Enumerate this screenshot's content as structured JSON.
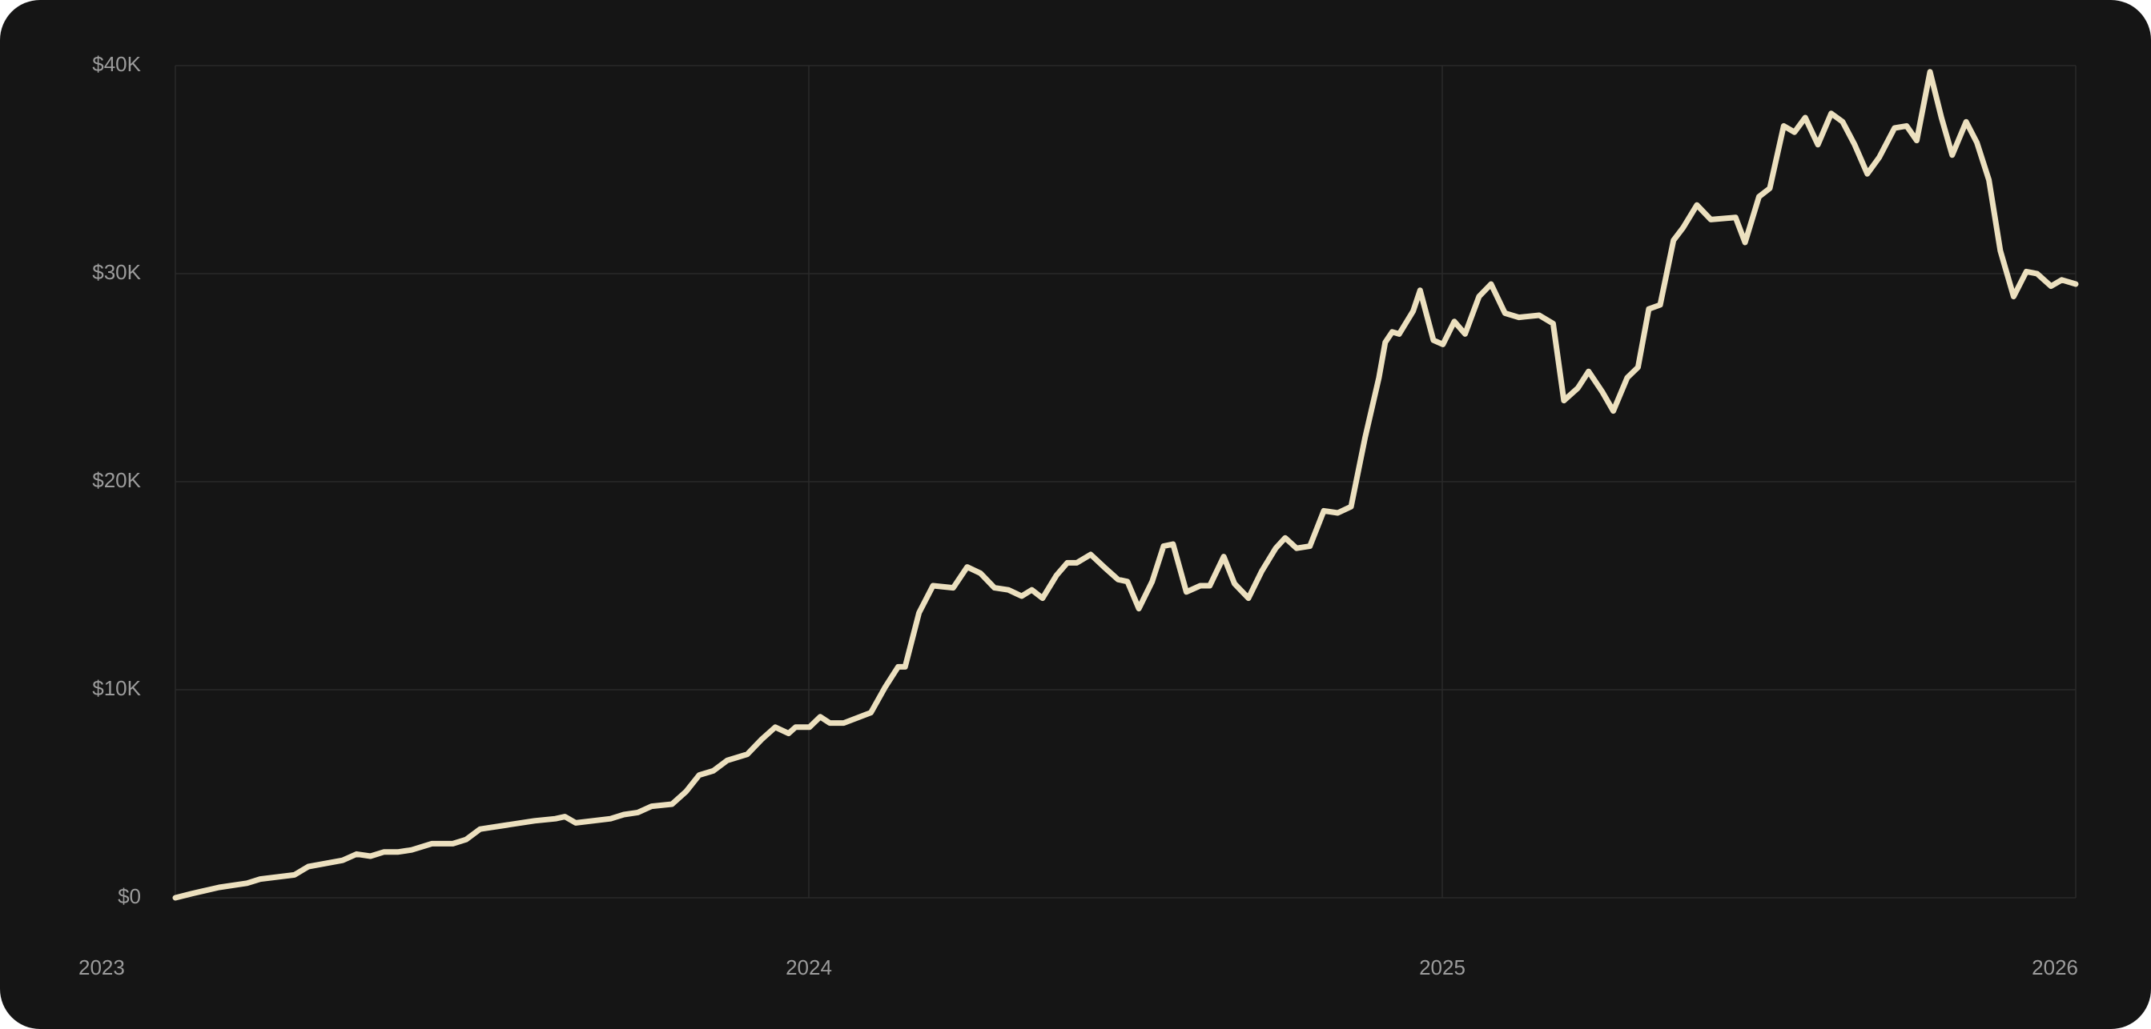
{
  "chart_data": {
    "type": "line",
    "color": "#ece0bf",
    "grid": true,
    "xlim": [
      2023,
      2026
    ],
    "xticks": [
      2023,
      2024,
      2025,
      2026
    ],
    "ylim": [
      0,
      40000
    ],
    "yticks": [
      {
        "value": 0,
        "label": "$0"
      },
      {
        "value": 10000,
        "label": "$10K"
      },
      {
        "value": 20000,
        "label": "$20K"
      },
      {
        "value": 30000,
        "label": "$30K"
      },
      {
        "value": 40000,
        "label": "$40K"
      }
    ],
    "x": [
      2023.0,
      2023.026,
      2023.069,
      2023.113,
      2023.134,
      2023.188,
      2023.21,
      2023.264,
      2023.286,
      2023.308,
      2023.329,
      2023.351,
      2023.373,
      2023.405,
      2023.438,
      2023.459,
      2023.481,
      2023.524,
      2023.567,
      2023.6,
      2023.615,
      2023.632,
      2023.687,
      2023.708,
      2023.73,
      2023.752,
      2023.784,
      2023.806,
      2023.827,
      2023.849,
      2023.871,
      2023.903,
      2023.925,
      2023.947,
      2023.968,
      2023.979,
      2024.001,
      2024.018,
      2024.033,
      2024.055,
      2024.098,
      2024.12,
      2024.141,
      2024.152,
      2024.174,
      2024.196,
      2024.228,
      2024.25,
      2024.271,
      2024.293,
      2024.315,
      2024.336,
      2024.352,
      2024.369,
      2024.391,
      2024.408,
      2024.423,
      2024.445,
      2024.466,
      2024.488,
      2024.503,
      2024.521,
      2024.542,
      2024.56,
      2024.575,
      2024.596,
      2024.618,
      2024.633,
      2024.655,
      2024.672,
      2024.694,
      2024.715,
      2024.737,
      2024.752,
      2024.77,
      2024.791,
      2024.813,
      2024.835,
      2024.856,
      2024.878,
      2024.9,
      2024.91,
      2024.921,
      2024.932,
      2024.954,
      2024.965,
      2024.986,
      2025.001,
      2025.019,
      2025.036,
      2025.058,
      2025.077,
      2025.099,
      2025.121,
      2025.153,
      2025.175,
      2025.192,
      2025.214,
      2025.231,
      2025.253,
      2025.27,
      2025.292,
      2025.309,
      2025.326,
      2025.344,
      2025.365,
      2025.38,
      2025.402,
      2025.424,
      2025.463,
      2025.478,
      2025.5,
      2025.517,
      2025.539,
      2025.556,
      2025.573,
      2025.593,
      2025.614,
      2025.632,
      2025.651,
      2025.671,
      2025.69,
      2025.714,
      2025.733,
      2025.749,
      2025.77,
      2025.788,
      2025.805,
      2025.827,
      2025.844,
      2025.863,
      2025.881,
      2025.902,
      2025.922,
      2025.939,
      2025.961,
      2025.978,
      2026.0
    ],
    "values": [
      0,
      200,
      500,
      700,
      900,
      1100,
      1500,
      1800,
      2100,
      2000,
      2200,
      2200,
      2300,
      2600,
      2600,
      2800,
      3300,
      3500,
      3700,
      3800,
      3900,
      3600,
      3800,
      4000,
      4100,
      4400,
      4500,
      5100,
      5900,
      6100,
      6600,
      6900,
      7600,
      8200,
      7900,
      8200,
      8200,
      8700,
      8400,
      8400,
      8900,
      10100,
      11100,
      11100,
      13700,
      15000,
      14900,
      15900,
      15600,
      14900,
      14800,
      14500,
      14800,
      14400,
      15500,
      16100,
      16100,
      16500,
      15900,
      15300,
      15200,
      13900,
      15200,
      16900,
      17000,
      14700,
      15000,
      15000,
      16400,
      15100,
      14400,
      15700,
      16800,
      17300,
      16800,
      16900,
      18600,
      18500,
      18800,
      22100,
      25000,
      26700,
      27200,
      27100,
      28200,
      29200,
      26800,
      26600,
      27700,
      27100,
      28900,
      29500,
      28100,
      27900,
      28000,
      27600,
      23900,
      24500,
      25300,
      24300,
      23400,
      25000,
      25500,
      28300,
      28500,
      31600,
      32200,
      33300,
      32600,
      32700,
      31500,
      33700,
      34100,
      37100,
      36800,
      37500,
      36200,
      37700,
      37300,
      36200,
      34800,
      35600,
      37000,
      37100,
      36400,
      39700,
      37500,
      35700,
      37300,
      36300,
      34500,
      31100,
      28900,
      30100,
      30000,
      29400,
      29700,
      29500
    ]
  }
}
